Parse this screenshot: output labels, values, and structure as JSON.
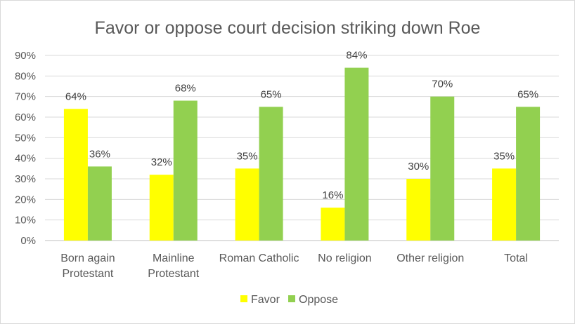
{
  "chart_data": {
    "type": "bar",
    "title": "Favor or oppose court decision striking down Roe",
    "categories": [
      [
        "Born again",
        "Protestant"
      ],
      [
        "Mainline",
        "Protestant"
      ],
      [
        "Roman Catholic"
      ],
      [
        "No religion"
      ],
      [
        "Other religion"
      ],
      [
        "Total"
      ]
    ],
    "series": [
      {
        "name": "Favor",
        "color": "#ffff00",
        "values": [
          64,
          32,
          35,
          16,
          30,
          35
        ],
        "labels": [
          "64%",
          "32%",
          "35%",
          "16%",
          "30%",
          "35%"
        ]
      },
      {
        "name": "Oppose",
        "color": "#92d050",
        "values": [
          36,
          68,
          65,
          84,
          70,
          65
        ],
        "labels": [
          "36%",
          "68%",
          "65%",
          "84%",
          "70%",
          "65%"
        ]
      }
    ],
    "ylim": [
      0,
      90
    ],
    "yticks": [
      0,
      10,
      20,
      30,
      40,
      50,
      60,
      70,
      80,
      90
    ],
    "ytick_labels": [
      "0%",
      "10%",
      "20%",
      "30%",
      "40%",
      "50%",
      "60%",
      "70%",
      "80%",
      "90%"
    ],
    "grid": true,
    "legend_position": "bottom-center"
  }
}
